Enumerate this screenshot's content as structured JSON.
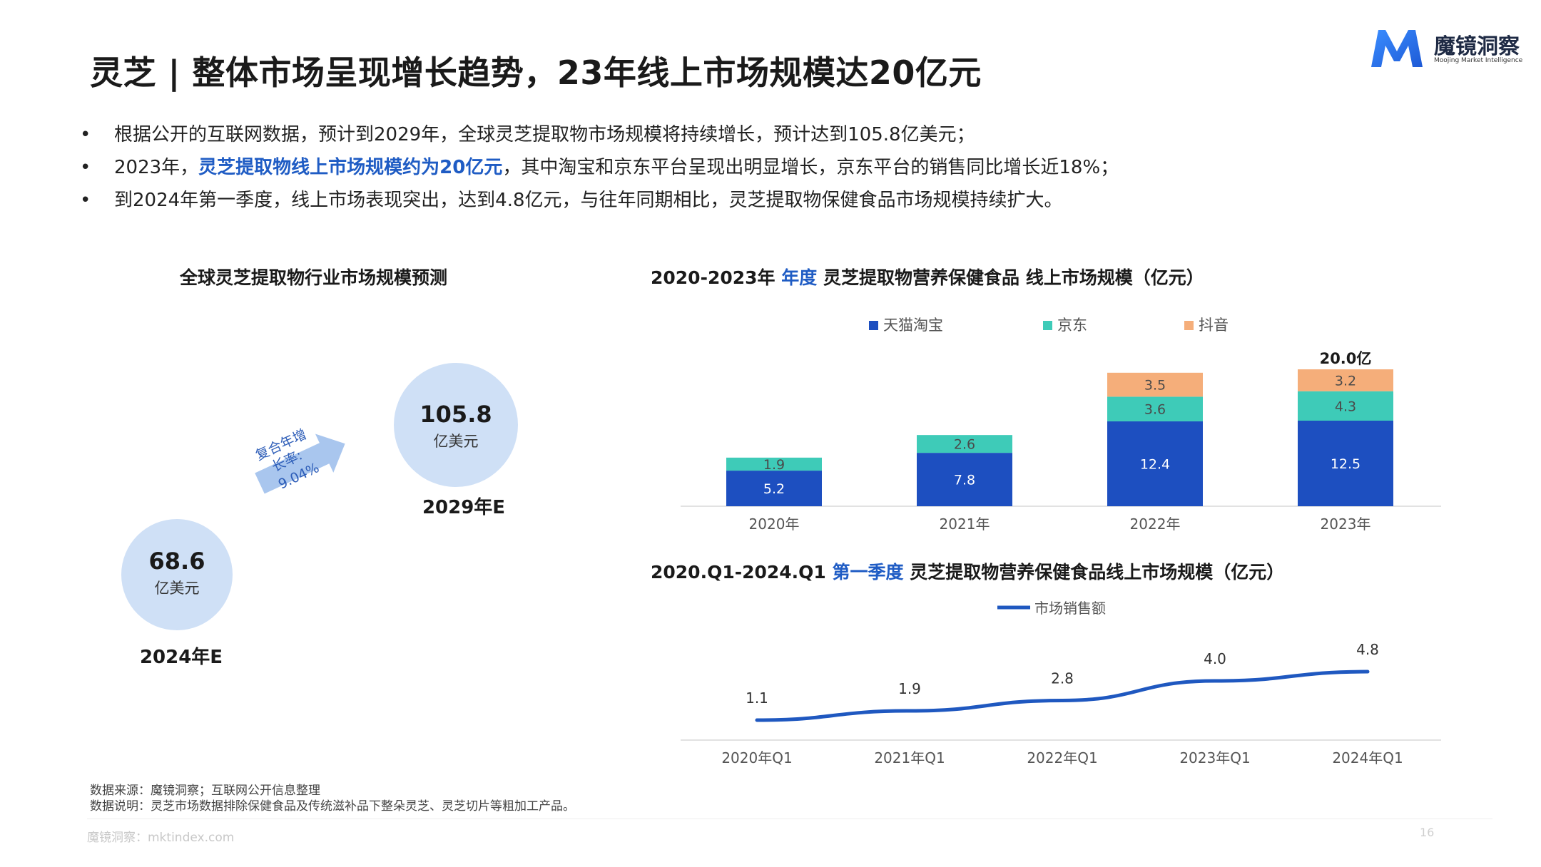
{
  "header": {
    "title": "灵芝 | 整体市场呈现增长趋势，23年线上市场规模达20亿元",
    "logo_cn": "魔镜洞察",
    "logo_en": "Moojing Market Intelligence"
  },
  "bullets": [
    {
      "dot": "•",
      "before": "根据公开的互联网数据，预计到2029年，全球灵芝提取物市场规模将持续增长，预计达到105.8亿美元；",
      "highlight": "",
      "after": ""
    },
    {
      "dot": "•",
      "before": "2023年，",
      "highlight": "灵芝提取物线上市场规模约为20亿元",
      "after": "，其中淘宝和京东平台呈现出明显增长，京东平台的销售同比增长近18%；"
    },
    {
      "dot": "•",
      "before": "到2024年第一季度，线上市场表现突出，达到4.8亿元，与往年同期相比，灵芝提取物保健食品市场规模持续扩大。",
      "highlight": "",
      "after": ""
    }
  ],
  "global_chart": {
    "title": "全球灵芝提取物行业市场规模预测",
    "bubbles": [
      {
        "value": "68.6",
        "unit": "亿美元",
        "year": "2024年E"
      },
      {
        "value": "105.8",
        "unit": "亿美元",
        "year": "2029年E"
      }
    ],
    "cagr_line1": "复合年增",
    "cagr_line2": "长率:",
    "cagr_value": "9.04%",
    "colors": {
      "bubble": "#cfe0f6",
      "arrow": "#a9c6ee"
    }
  },
  "bar_chart": {
    "title_pre": "2020-2023年",
    "title_hl": "年度",
    "title_post": "灵芝提取物营养保健食品 线上市场规模（亿元）",
    "total_label": "20.0亿"
  },
  "line_chart": {
    "title_pre": "2020.Q1-2024.Q1",
    "title_hl": "第一季度",
    "title_post": "灵芝提取物营养保健食品线上市场规模（亿元）"
  },
  "chart_data": [
    {
      "type": "bar",
      "stacked": true,
      "categories": [
        "2020年",
        "2021年",
        "2022年",
        "2023年"
      ],
      "series": [
        {
          "name": "天猫淘宝",
          "color": "#1d4fc0",
          "values": [
            5.2,
            7.8,
            12.4,
            12.5
          ]
        },
        {
          "name": "京东",
          "color": "#3ecbb8",
          "values": [
            1.9,
            2.6,
            3.6,
            4.3
          ]
        },
        {
          "name": "抖音",
          "color": "#f5ae7a",
          "values": [
            null,
            null,
            3.5,
            3.2
          ]
        }
      ],
      "legend": "top",
      "grid": false
    },
    {
      "type": "line",
      "x": [
        "2020年Q1",
        "2021年Q1",
        "2022年Q1",
        "2023年Q1",
        "2024年Q1"
      ],
      "series": [
        {
          "name": "市场销售额",
          "color": "#1f58c0",
          "values": [
            1.1,
            1.9,
            2.8,
            4.0,
            4.8
          ]
        }
      ],
      "legend": "top",
      "grid": false
    }
  ],
  "footer": {
    "source": "数据来源：魔镜洞察；互联网公开信息整理",
    "note": "数据说明：灵芝市场数据排除保健食品及传统滋补品下整朵灵芝、灵芝切片等粗加工产品。",
    "site": "魔镜洞察：mktindex.com",
    "page": "16"
  }
}
